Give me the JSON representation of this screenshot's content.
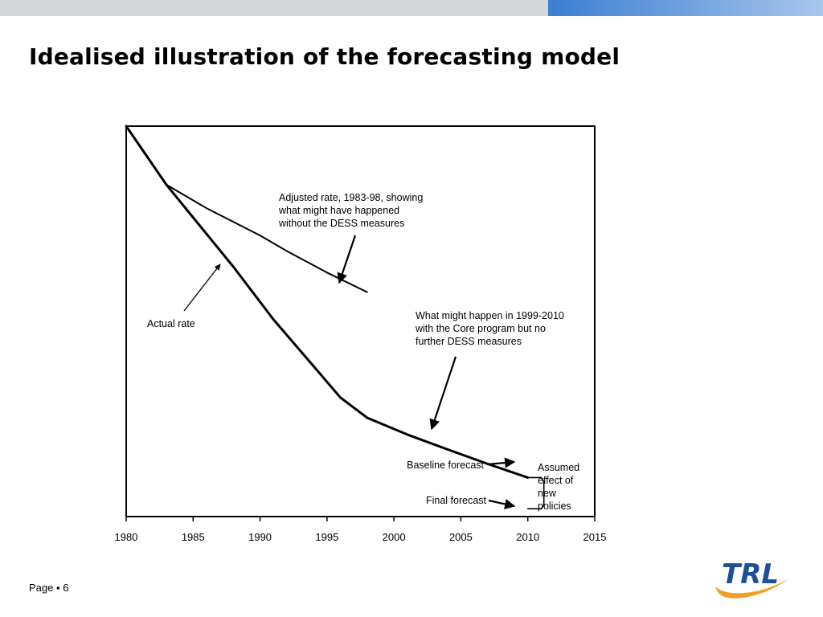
{
  "slide": {
    "title": "Idealised illustration of the forecasting model",
    "footer_label": "Page",
    "footer_separator": "▪",
    "page_number": "6"
  },
  "logo": {
    "text": "TRL",
    "brand_color": "#1f4f9a",
    "swoosh_color": "#f0a020",
    "icon": "trl-logo"
  },
  "colors": {
    "topbar": "#d4d6da",
    "accent": "#3b7fd0"
  },
  "chart_data": {
    "type": "line",
    "title": "",
    "xlabel": "",
    "ylabel": "",
    "xlim": [
      1980,
      2015
    ],
    "ylim": [
      0,
      1
    ],
    "x_ticks": [
      1980,
      1985,
      1990,
      1995,
      2000,
      2005,
      2010,
      2015
    ],
    "y_axis_labels": "none",
    "grid": false,
    "legend": "none",
    "series": [
      {
        "key": "actual",
        "points": [
          [
            1980,
            1.0
          ],
          [
            1983,
            0.85
          ],
          [
            1988,
            0.64
          ],
          [
            1991,
            0.505
          ],
          [
            1994,
            0.385
          ],
          [
            1996,
            0.305
          ],
          [
            1998,
            0.253
          ]
        ]
      },
      {
        "key": "adjusted",
        "points": [
          [
            1983,
            0.85
          ],
          [
            1986,
            0.79
          ],
          [
            1988,
            0.755
          ],
          [
            1990,
            0.72
          ],
          [
            1992,
            0.68
          ],
          [
            1995,
            0.625
          ],
          [
            1998,
            0.575
          ]
        ]
      },
      {
        "key": "forecast_core",
        "points": [
          [
            1998,
            0.253
          ],
          [
            2001,
            0.21
          ],
          [
            2004,
            0.172
          ],
          [
            2007,
            0.135
          ],
          [
            2010,
            0.1
          ]
        ]
      },
      {
        "key": "final_forecast_gap",
        "points": [
          [
            2010,
            0.1
          ],
          [
            2011,
            0.1
          ],
          [
            2011.2,
            0.09
          ],
          [
            2011.2,
            0.03
          ],
          [
            2011,
            0.02
          ],
          [
            2010,
            0.02
          ]
        ]
      }
    ],
    "annotations": [
      {
        "key": "adjusted",
        "lines": [
          "Adjusted rate, 1983-98,  showing",
          "what might have happened",
          "without the DESS measures"
        ]
      },
      {
        "key": "actual",
        "lines": [
          "Actual rate"
        ]
      },
      {
        "key": "core",
        "lines": [
          "What might happen in 1999-2010",
          "with the Core program but no",
          "further DESS measures"
        ]
      },
      {
        "key": "baseline",
        "lines": [
          "Baseline forecast"
        ]
      },
      {
        "key": "final",
        "lines": [
          "Final forecast"
        ]
      },
      {
        "key": "policies",
        "lines": [
          "Assumed",
          "effect of",
          "new",
          "policies"
        ]
      }
    ]
  }
}
